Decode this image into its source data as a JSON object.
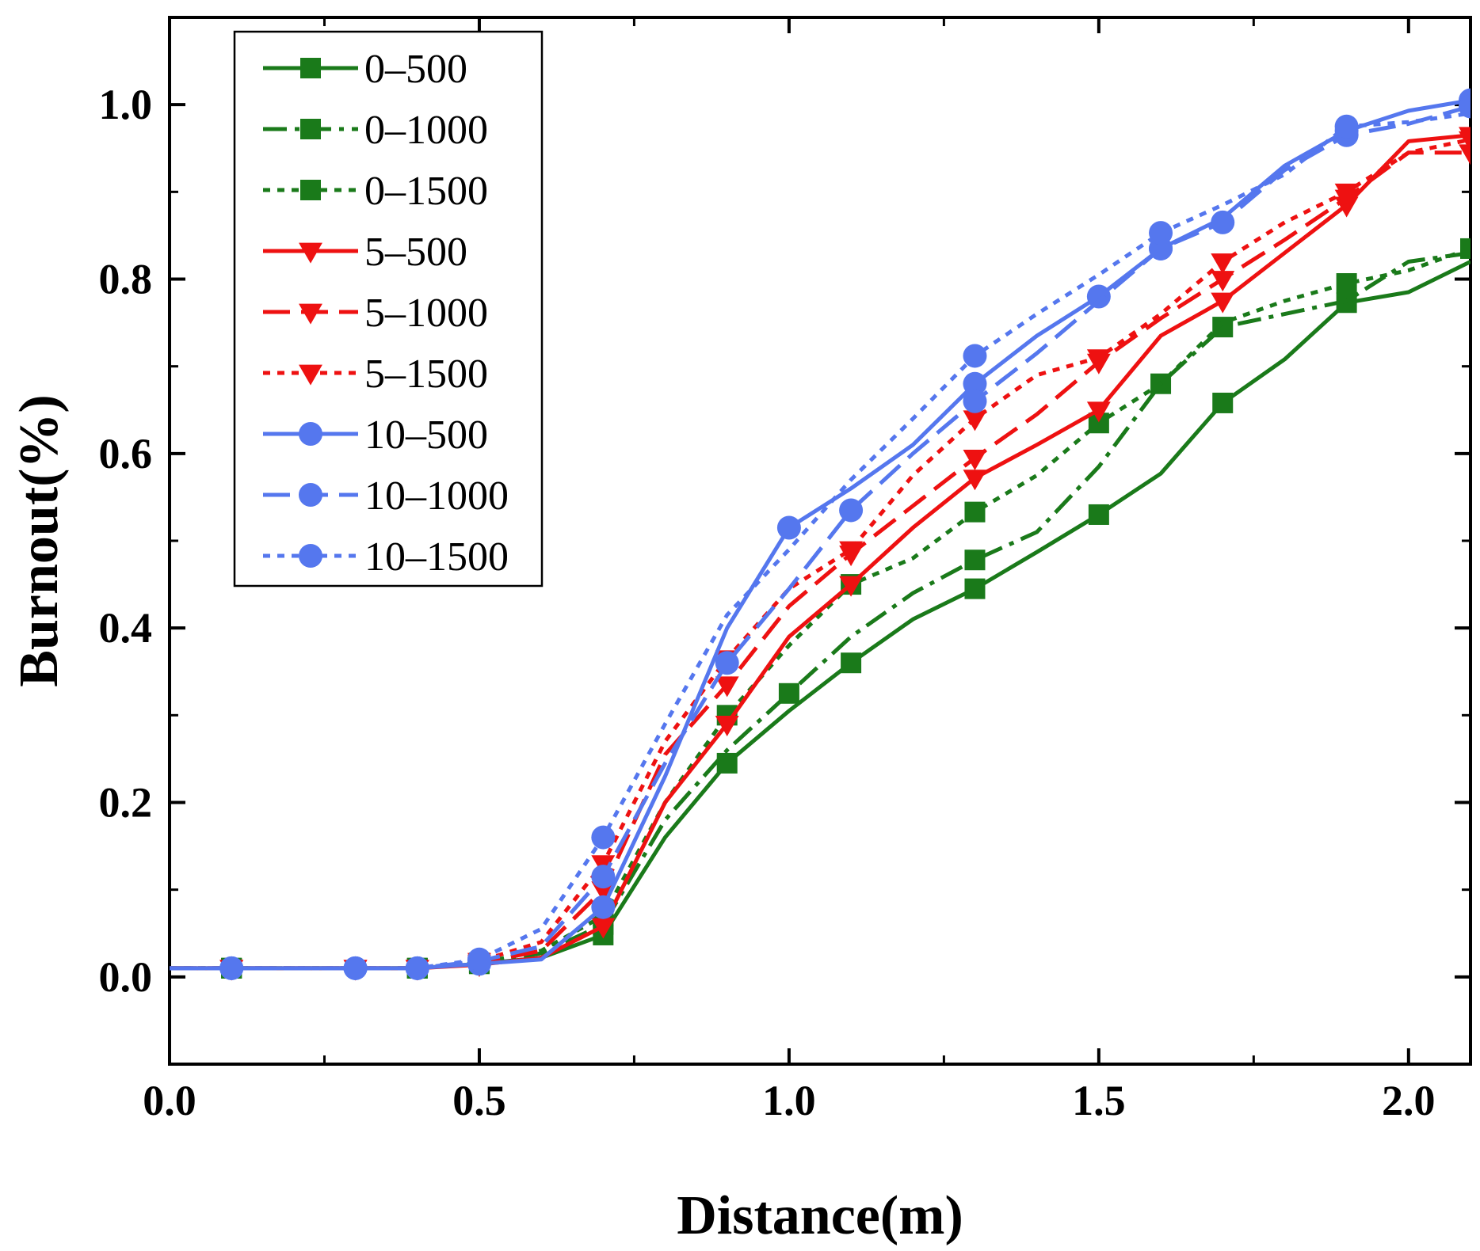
{
  "chart_data": {
    "type": "line",
    "title": "",
    "xlabel": "Distance(m)",
    "ylabel": "Burnout(%)",
    "xlim": [
      0.0,
      2.1
    ],
    "ylim": [
      -0.1,
      1.1
    ],
    "xticks": [
      "0.0",
      "0.5",
      "1.0",
      "1.5",
      "2.0"
    ],
    "yticks": [
      "0.0",
      "0.2",
      "0.4",
      "0.6",
      "0.8",
      "1.0"
    ],
    "grid": false,
    "legend_position": "top-left",
    "series": [
      {
        "name": "0–500",
        "color": "#1a7a1a",
        "dash": "solid",
        "marker": "square",
        "x": [
          0.0,
          0.1,
          0.2,
          0.3,
          0.4,
          0.5,
          0.6,
          0.7,
          0.8,
          0.9,
          1.0,
          1.1,
          1.2,
          1.3,
          1.4,
          1.5,
          1.6,
          1.7,
          1.8,
          1.9,
          2.0,
          2.1
        ],
        "y": [
          0.01,
          0.01,
          0.01,
          0.01,
          0.01,
          0.015,
          0.022,
          0.048,
          0.16,
          0.245,
          0.305,
          0.36,
          0.41,
          0.445,
          0.487,
          0.53,
          0.577,
          0.658,
          0.708,
          0.773,
          0.785,
          0.82
        ],
        "markers_at": [
          0.1,
          0.4,
          0.5,
          0.7,
          0.9,
          1.1,
          1.3,
          1.5,
          1.7,
          1.9
        ]
      },
      {
        "name": "0–1000",
        "color": "#1a7a1a",
        "dash": "dashdot",
        "marker": "square",
        "x": [
          0.0,
          0.1,
          0.2,
          0.3,
          0.4,
          0.5,
          0.6,
          0.7,
          0.8,
          0.9,
          1.0,
          1.1,
          1.2,
          1.3,
          1.4,
          1.5,
          1.6,
          1.7,
          1.8,
          1.9,
          2.0,
          2.1
        ],
        "y": [
          0.01,
          0.01,
          0.01,
          0.01,
          0.01,
          0.016,
          0.027,
          0.06,
          0.18,
          0.26,
          0.325,
          0.39,
          0.44,
          0.478,
          0.51,
          0.585,
          0.68,
          0.745,
          0.76,
          0.775,
          0.82,
          0.83
        ],
        "markers_at": [
          0.1,
          0.4,
          0.5,
          0.7,
          1.0,
          1.3,
          1.6,
          1.7
        ]
      },
      {
        "name": "0–1500",
        "color": "#1a7a1a",
        "dash": "dot",
        "marker": "square",
        "x": [
          0.0,
          0.1,
          0.2,
          0.3,
          0.4,
          0.5,
          0.6,
          0.7,
          0.8,
          0.9,
          1.0,
          1.1,
          1.2,
          1.3,
          1.4,
          1.5,
          1.6,
          1.7,
          1.8,
          1.9,
          2.0,
          2.1
        ],
        "y": [
          0.01,
          0.01,
          0.01,
          0.01,
          0.01,
          0.016,
          0.03,
          0.07,
          0.2,
          0.3,
          0.38,
          0.45,
          0.48,
          0.533,
          0.575,
          0.635,
          0.68,
          0.75,
          0.775,
          0.795,
          0.81,
          0.835
        ],
        "markers_at": [
          0.1,
          0.4,
          0.5,
          0.7,
          0.9,
          1.1,
          1.3,
          1.5,
          1.9,
          2.1
        ]
      },
      {
        "name": "5–500",
        "color": "#ee1111",
        "dash": "solid",
        "marker": "triangle-down",
        "x": [
          0.0,
          0.1,
          0.2,
          0.3,
          0.4,
          0.5,
          0.6,
          0.7,
          0.8,
          0.9,
          1.0,
          1.1,
          1.2,
          1.3,
          1.4,
          1.5,
          1.6,
          1.7,
          1.8,
          1.9,
          2.0,
          2.1
        ],
        "y": [
          0.01,
          0.01,
          0.01,
          0.01,
          0.01,
          0.014,
          0.022,
          0.058,
          0.2,
          0.29,
          0.39,
          0.45,
          0.515,
          0.572,
          0.61,
          0.65,
          0.735,
          0.775,
          0.83,
          0.885,
          0.958,
          0.965
        ],
        "markers_at": [
          0.1,
          0.3,
          0.4,
          0.5,
          0.7,
          0.9,
          1.1,
          1.3,
          1.5,
          1.7,
          1.9,
          2.1
        ]
      },
      {
        "name": "5–1000",
        "color": "#ee1111",
        "dash": "dash",
        "marker": "triangle-down",
        "x": [
          0.0,
          0.1,
          0.2,
          0.3,
          0.4,
          0.5,
          0.6,
          0.7,
          0.8,
          0.9,
          1.0,
          1.1,
          1.2,
          1.3,
          1.4,
          1.5,
          1.6,
          1.7,
          1.8,
          1.9,
          2.0,
          2.1
        ],
        "y": [
          0.01,
          0.01,
          0.01,
          0.01,
          0.01,
          0.016,
          0.03,
          0.1,
          0.255,
          0.335,
          0.425,
          0.485,
          0.54,
          0.595,
          0.645,
          0.705,
          0.755,
          0.8,
          0.845,
          0.893,
          0.945,
          0.945
        ],
        "markers_at": [
          0.1,
          0.3,
          0.4,
          0.5,
          0.7,
          0.9,
          1.1,
          1.3,
          1.5,
          1.7,
          1.9,
          2.1
        ]
      },
      {
        "name": "5–1500",
        "color": "#ee1111",
        "dash": "dot",
        "marker": "triangle-down",
        "x": [
          0.0,
          0.1,
          0.2,
          0.3,
          0.4,
          0.5,
          0.6,
          0.7,
          0.8,
          0.9,
          1.0,
          1.1,
          1.2,
          1.3,
          1.4,
          1.5,
          1.6,
          1.7,
          1.8,
          1.9,
          2.0,
          2.1
        ],
        "y": [
          0.01,
          0.01,
          0.01,
          0.01,
          0.01,
          0.018,
          0.04,
          0.13,
          0.27,
          0.365,
          0.445,
          0.49,
          0.575,
          0.64,
          0.69,
          0.71,
          0.76,
          0.82,
          0.865,
          0.9,
          0.945,
          0.96
        ],
        "markers_at": [
          0.1,
          0.3,
          0.4,
          0.5,
          0.7,
          0.9,
          1.1,
          1.3,
          1.5,
          1.7,
          1.9,
          2.1
        ]
      },
      {
        "name": "10–500",
        "color": "#5577ee",
        "dash": "solid",
        "marker": "circle",
        "x": [
          0.0,
          0.1,
          0.2,
          0.3,
          0.4,
          0.5,
          0.6,
          0.7,
          0.8,
          0.9,
          1.0,
          1.1,
          1.2,
          1.3,
          1.4,
          1.5,
          1.6,
          1.7,
          1.8,
          1.9,
          2.0,
          2.1
        ],
        "y": [
          0.01,
          0.01,
          0.01,
          0.01,
          0.01,
          0.015,
          0.02,
          0.08,
          0.23,
          0.4,
          0.515,
          0.56,
          0.61,
          0.68,
          0.735,
          0.78,
          0.835,
          0.87,
          0.93,
          0.97,
          0.993,
          1.005
        ],
        "markers_at": [
          0.1,
          0.3,
          0.4,
          0.5,
          0.7,
          1.0,
          1.3,
          1.5,
          1.6,
          1.9,
          2.1
        ]
      },
      {
        "name": "10–1000",
        "color": "#5577ee",
        "dash": "dash",
        "marker": "circle",
        "x": [
          0.0,
          0.1,
          0.2,
          0.3,
          0.4,
          0.5,
          0.6,
          0.7,
          0.8,
          0.9,
          1.0,
          1.1,
          1.2,
          1.3,
          1.4,
          1.5,
          1.6,
          1.7,
          1.8,
          1.9,
          2.0,
          2.1
        ],
        "y": [
          0.01,
          0.01,
          0.01,
          0.01,
          0.01,
          0.018,
          0.035,
          0.115,
          0.245,
          0.36,
          0.445,
          0.535,
          0.6,
          0.66,
          0.715,
          0.775,
          0.835,
          0.865,
          0.925,
          0.965,
          0.978,
          0.998
        ],
        "markers_at": [
          0.1,
          0.3,
          0.4,
          0.5,
          0.7,
          0.9,
          1.1,
          1.3,
          1.6,
          1.7,
          1.9,
          2.1
        ]
      },
      {
        "name": "10–1500",
        "color": "#5577ee",
        "dash": "dot",
        "marker": "circle",
        "x": [
          0.0,
          0.1,
          0.2,
          0.3,
          0.4,
          0.5,
          0.6,
          0.7,
          0.8,
          0.9,
          1.0,
          1.1,
          1.2,
          1.3,
          1.4,
          1.5,
          1.6,
          1.7,
          1.8,
          1.9,
          2.0,
          2.1
        ],
        "y": [
          0.01,
          0.01,
          0.01,
          0.01,
          0.01,
          0.02,
          0.055,
          0.16,
          0.29,
          0.415,
          0.49,
          0.57,
          0.64,
          0.712,
          0.76,
          0.805,
          0.853,
          0.885,
          0.92,
          0.975,
          0.98,
          0.99
        ],
        "markers_at": [
          0.1,
          0.3,
          0.4,
          0.5,
          0.7,
          1.3,
          1.6,
          1.9
        ]
      }
    ]
  }
}
